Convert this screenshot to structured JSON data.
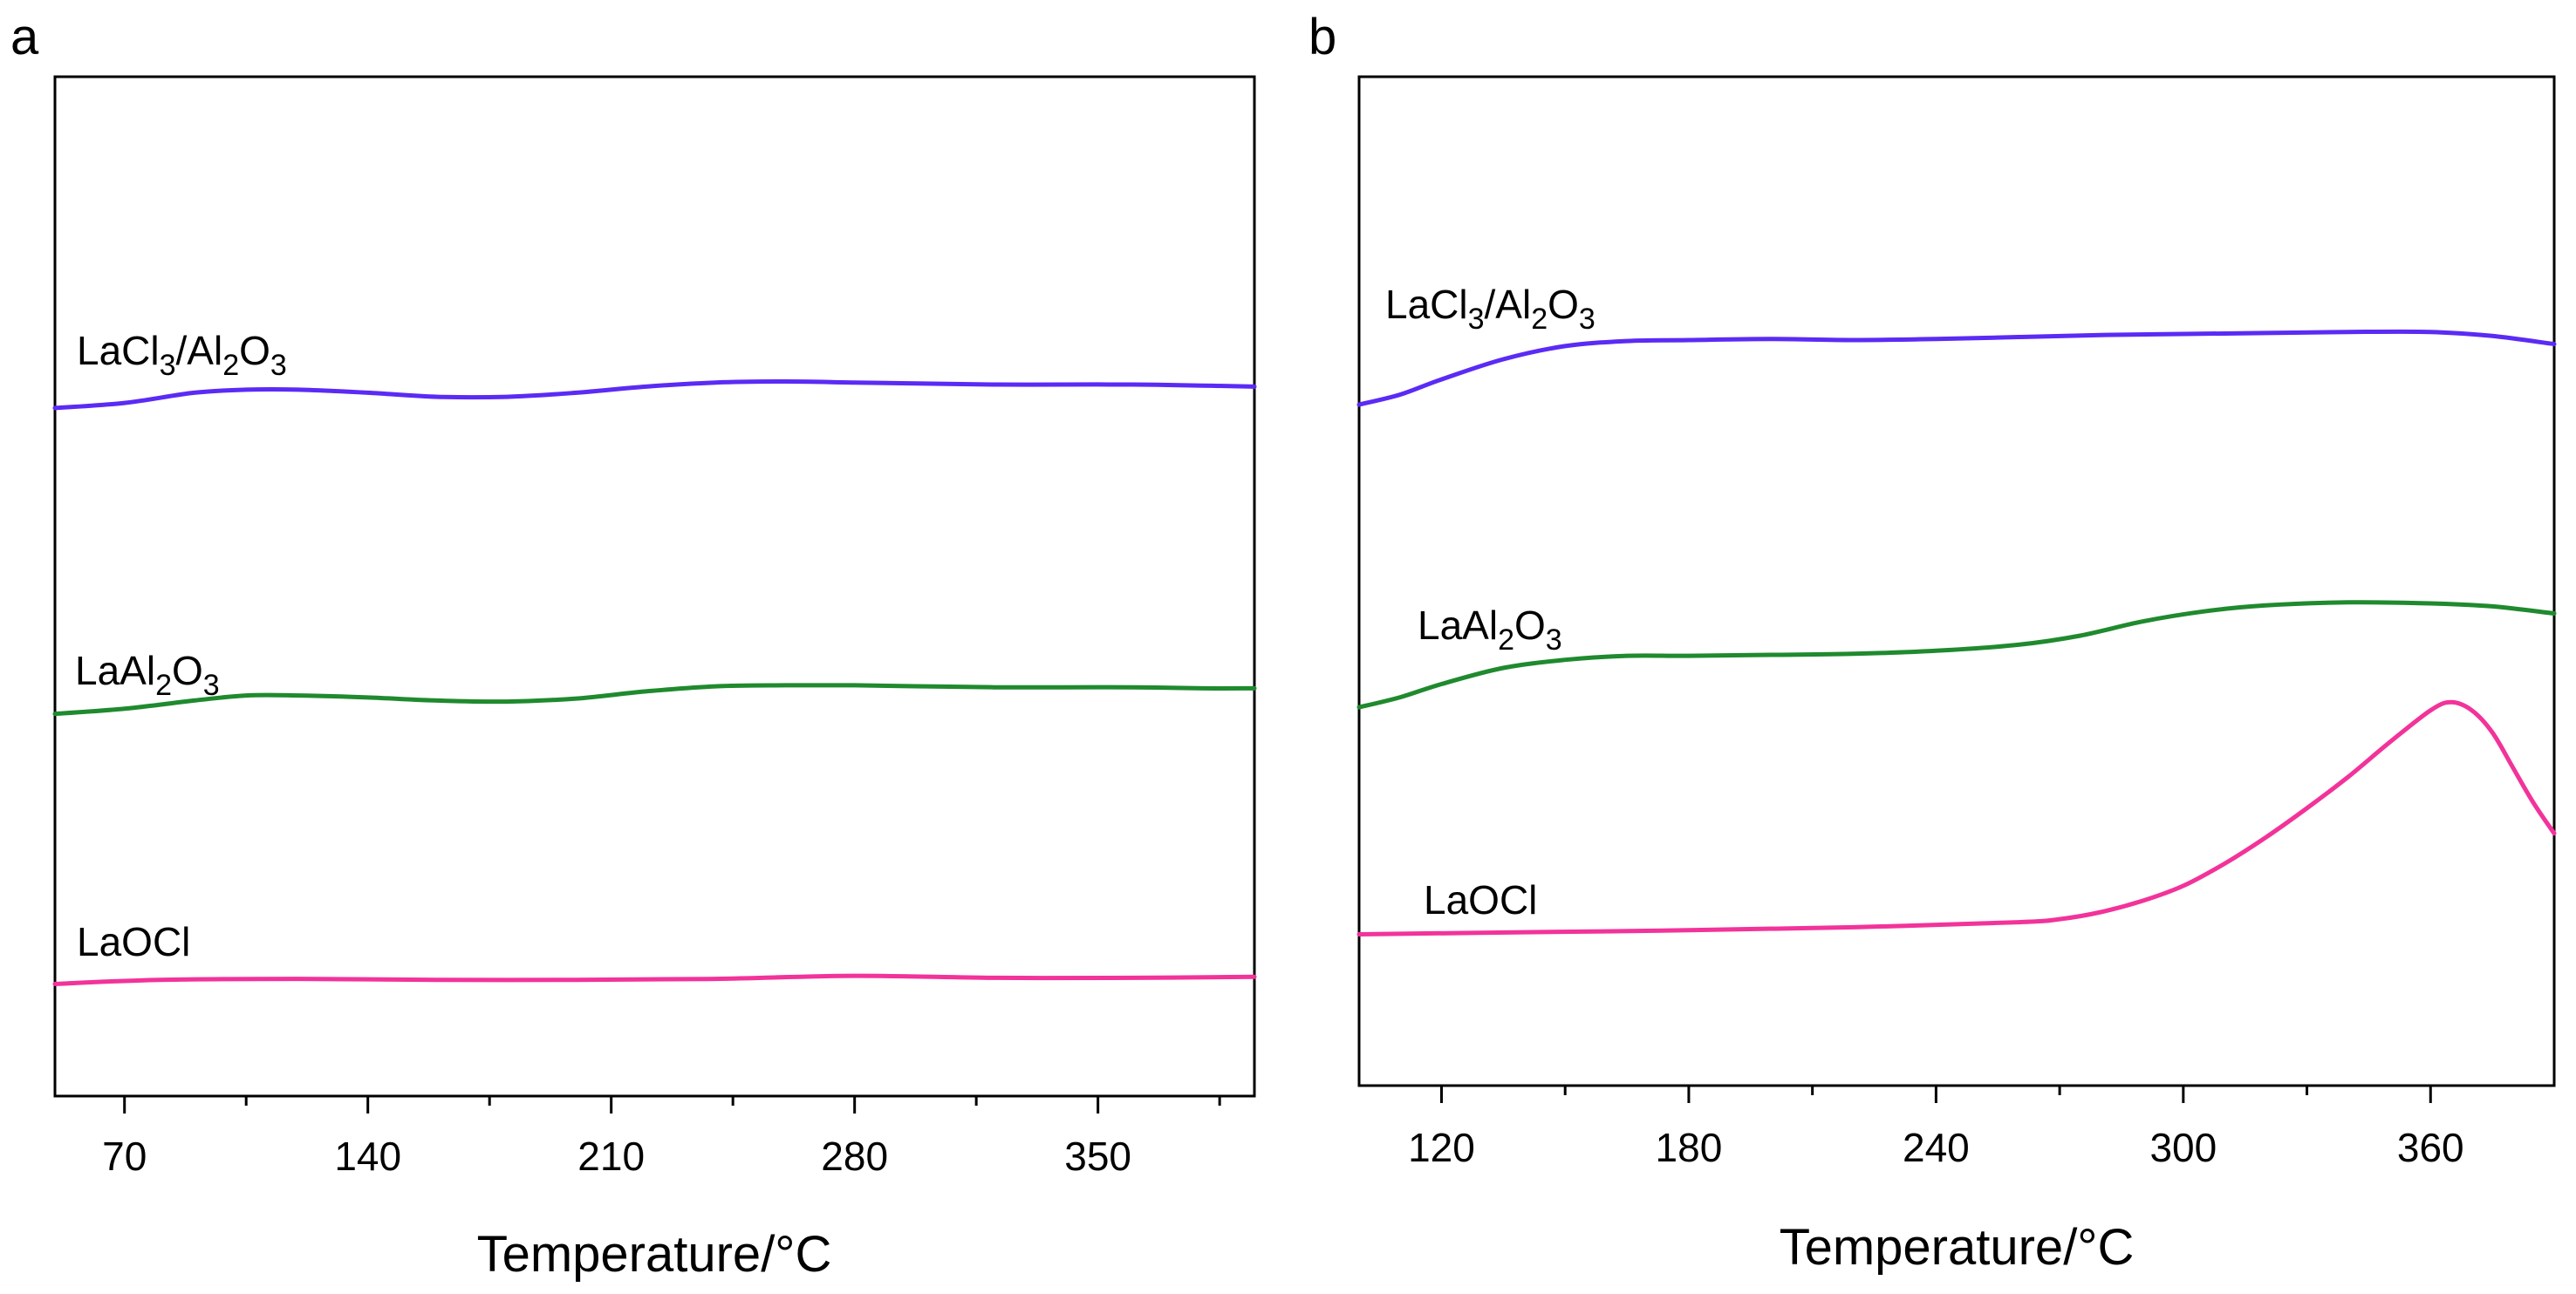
{
  "chart_data": [
    {
      "panel": "a",
      "type": "line",
      "xlabel": "Temperature/°C",
      "ylabel": "",
      "xlim": [
        50,
        395
      ],
      "ylim": [
        0,
        100
      ],
      "xticks": [
        70,
        140,
        210,
        280,
        350
      ],
      "minor_xticks": [
        105,
        175,
        245,
        315,
        385
      ],
      "series": [
        {
          "name": "LaCl3/Al2O3",
          "label": {
            "base": "LaCl",
            "sub1": "3",
            "mid": "/Al",
            "sub2": "2",
            "mid2": "O",
            "sub3": "3"
          },
          "color": "#5b2bf5",
          "x": [
            50,
            70,
            90,
            105,
            120,
            140,
            160,
            180,
            200,
            220,
            240,
            260,
            280,
            300,
            320,
            340,
            360,
            380,
            395
          ],
          "y": [
            67.5,
            68.0,
            69.0,
            69.3,
            69.3,
            69.0,
            68.6,
            68.6,
            69.0,
            69.6,
            70.0,
            70.1,
            70.0,
            69.9,
            69.8,
            69.8,
            69.8,
            69.7,
            69.6
          ]
        },
        {
          "name": "LaAl2O3",
          "label": {
            "base": "LaAl",
            "sub1": "2",
            "mid": "O",
            "sub2": "3",
            "mid2": "",
            "sub3": ""
          },
          "color": "#1f8a2e",
          "x": [
            50,
            70,
            90,
            105,
            120,
            140,
            160,
            180,
            200,
            220,
            240,
            260,
            280,
            300,
            320,
            340,
            360,
            380,
            395
          ],
          "y": [
            37.5,
            38.0,
            38.8,
            39.3,
            39.3,
            39.1,
            38.8,
            38.7,
            39.0,
            39.7,
            40.2,
            40.3,
            40.3,
            40.2,
            40.1,
            40.1,
            40.1,
            40.0,
            40.0
          ]
        },
        {
          "name": "LaOCl",
          "label": {
            "base": "LaOCl",
            "sub1": "",
            "mid": "",
            "sub2": "",
            "mid2": "",
            "sub3": ""
          },
          "color": "#f2339a",
          "x": [
            50,
            80,
            120,
            160,
            200,
            240,
            280,
            320,
            360,
            395
          ],
          "y": [
            11.0,
            11.4,
            11.5,
            11.4,
            11.4,
            11.5,
            11.8,
            11.6,
            11.6,
            11.7
          ]
        }
      ]
    },
    {
      "panel": "b",
      "type": "line",
      "xlabel": "Temperature/°C",
      "ylabel": "",
      "xlim": [
        100,
        390
      ],
      "ylim": [
        0,
        100
      ],
      "xticks": [
        120,
        180,
        240,
        300,
        360
      ],
      "minor_xticks": [
        150,
        210,
        270,
        330
      ],
      "series": [
        {
          "name": "LaCl3/Al2O3",
          "label": {
            "base": "LaCl",
            "sub1": "3",
            "mid": "/Al",
            "sub2": "2",
            "mid2": "O",
            "sub3": "3"
          },
          "color": "#5b2bf5",
          "x": [
            100,
            110,
            120,
            135,
            150,
            165,
            180,
            200,
            220,
            240,
            260,
            280,
            300,
            320,
            340,
            360,
            375,
            390
          ],
          "y": [
            67.5,
            68.5,
            70.0,
            72.0,
            73.3,
            73.8,
            73.9,
            74.0,
            73.9,
            74.0,
            74.2,
            74.4,
            74.5,
            74.6,
            74.7,
            74.7,
            74.3,
            73.5
          ]
        },
        {
          "name": "LaAl2O3",
          "label": {
            "base": "LaAl",
            "sub1": "2",
            "mid": "O",
            "sub2": "3",
            "mid2": "",
            "sub3": ""
          },
          "color": "#1f8a2e",
          "x": [
            100,
            110,
            120,
            135,
            150,
            165,
            180,
            200,
            220,
            240,
            260,
            275,
            290,
            305,
            320,
            340,
            360,
            375,
            390
          ],
          "y": [
            37.5,
            38.5,
            39.8,
            41.4,
            42.2,
            42.6,
            42.6,
            42.7,
            42.8,
            43.1,
            43.7,
            44.6,
            46.0,
            47.0,
            47.6,
            47.9,
            47.8,
            47.5,
            46.8
          ]
        },
        {
          "name": "LaOCl",
          "label": {
            "base": "LaOCl",
            "sub1": "",
            "mid": "",
            "sub2": "",
            "mid2": "",
            "sub3": ""
          },
          "color": "#f2339a",
          "x": [
            100,
            140,
            180,
            220,
            260,
            270,
            280,
            290,
            300,
            310,
            320,
            330,
            340,
            350,
            360,
            365,
            370,
            375,
            380,
            385,
            390
          ],
          "y": [
            15.0,
            15.2,
            15.4,
            15.7,
            16.2,
            16.5,
            17.2,
            18.3,
            19.8,
            22.0,
            24.6,
            27.5,
            30.6,
            34.0,
            37.2,
            38.0,
            37.2,
            35.0,
            31.5,
            28.0,
            25.0
          ]
        }
      ]
    }
  ]
}
